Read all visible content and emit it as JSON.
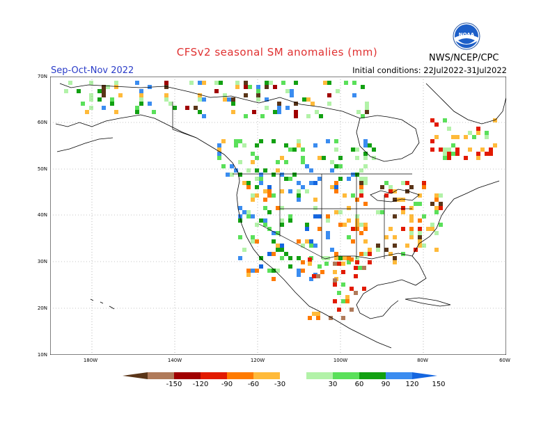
{
  "header": {
    "title": "CFSv2 seasonal SM anomalies (mm)",
    "period": "Sep-Oct-Nov 2022",
    "initial_conditions": "Initial conditions: 22Jul2022-31Jul2022",
    "agency": "NWS/NCEP/CPC",
    "logo_text": "NOAA"
  },
  "axes": {
    "lat_labels": [
      "70N",
      "60N",
      "50N",
      "40N",
      "30N",
      "20N",
      "10N"
    ],
    "lon_labels": [
      "180W",
      "140W",
      "120W",
      "100W",
      "80W",
      "60W"
    ]
  },
  "legend": {
    "labels": [
      "-150",
      "-120",
      "-90",
      "-60",
      "-30",
      "30",
      "60",
      "90",
      "120",
      "150"
    ],
    "colors": [
      "#5a3518",
      "#b07a5a",
      "#a00000",
      "#e21a00",
      "#ff7a00",
      "#ffba3a",
      "#ffffff",
      "#b2f2a8",
      "#5ae05a",
      "#12a012",
      "#3a8cf0",
      "#1466e0"
    ]
  },
  "colors": {
    "title": "#e03030",
    "period": "#2a3cc8"
  }
}
